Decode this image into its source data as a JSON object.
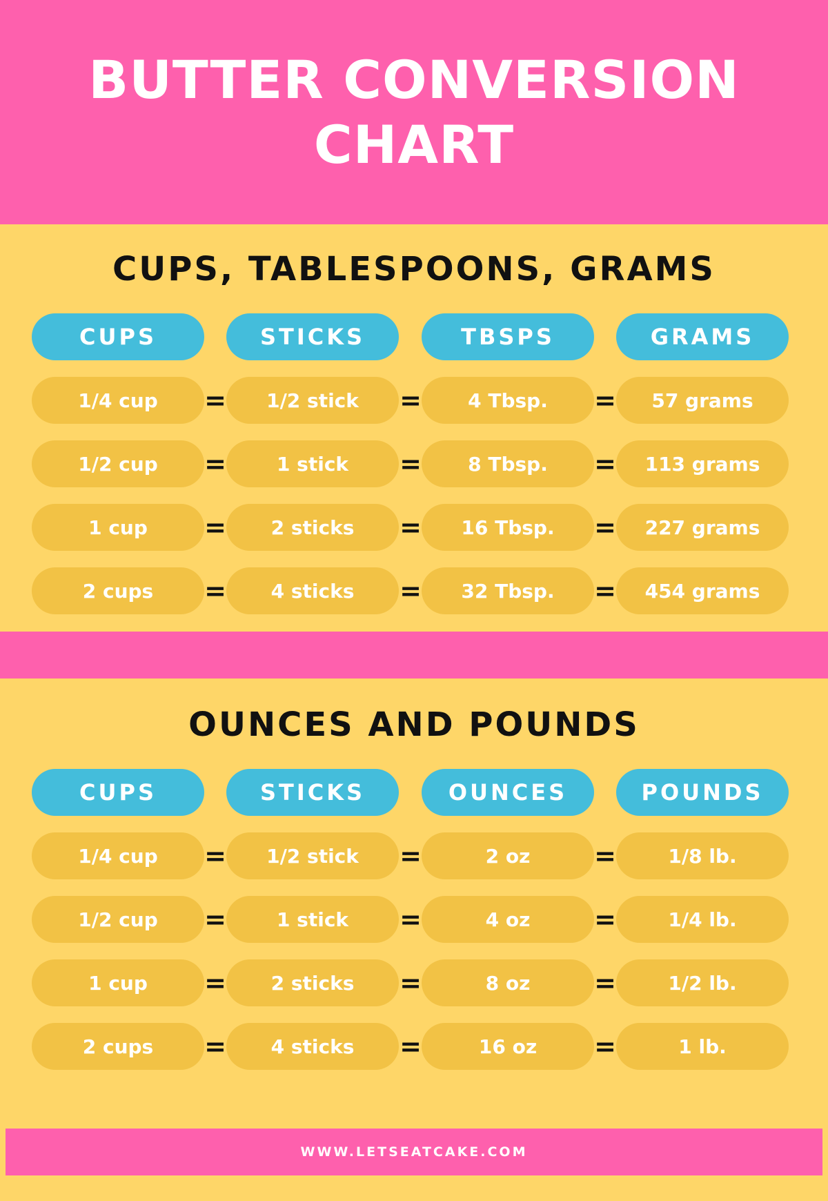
{
  "title": "BUTTER CONVERSION CHART",
  "sections": [
    {
      "title": "CUPS, TABLESPOONS, GRAMS",
      "headers": [
        "CUPS",
        "STICKS",
        "TBSPS",
        "GRAMS"
      ],
      "rows": [
        [
          "1/4 cup",
          "1/2 stick",
          "4 Tbsp.",
          "57 grams"
        ],
        [
          "1/2 cup",
          "1 stick",
          "8 Tbsp.",
          "113 grams"
        ],
        [
          "1 cup",
          "2 sticks",
          "16 Tbsp.",
          "227 grams"
        ],
        [
          "2 cups",
          "4 sticks",
          "32 Tbsp.",
          "454 grams"
        ]
      ],
      "separator": "="
    },
    {
      "title": "OUNCES AND POUNDS",
      "headers": [
        "CUPS",
        "STICKS",
        "OUNCES",
        "POUNDS"
      ],
      "rows": [
        [
          "1/4 cup",
          "1/2 stick",
          "2 oz",
          "1/8 lb."
        ],
        [
          "1/2 cup",
          "1 stick",
          "4 oz",
          "1/4 lb."
        ],
        [
          "1 cup",
          "2 sticks",
          "8 oz",
          "1/2 lb."
        ],
        [
          "2 cups",
          "4 sticks",
          "16 oz",
          "1 lb."
        ]
      ],
      "separator": "="
    }
  ],
  "footer": "WWW.LETSEATCAKE.COM",
  "colors": {
    "pink": "#fe60ad",
    "yellow_bg": "#fed668",
    "pill_yellow": "#f2c245",
    "header_blue": "#44bddb"
  }
}
